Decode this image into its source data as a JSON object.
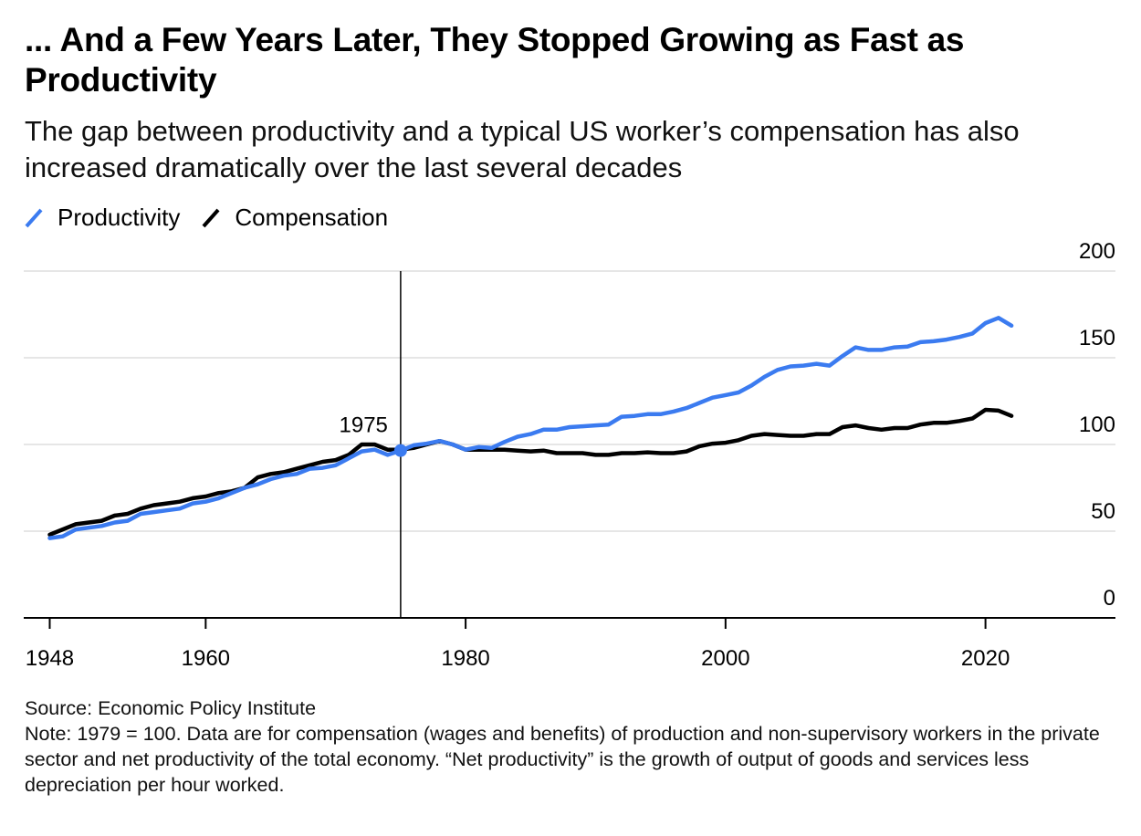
{
  "title": "... And a Few Years Later, They Stopped Growing as Fast as Productivity",
  "subtitle": "The gap between productivity and a typical US worker’s compensation has also increased dramatically over the last several decades",
  "legend": [
    {
      "label": "Productivity",
      "color": "#3b7bf0"
    },
    {
      "label": "Compensation",
      "color": "#000000"
    }
  ],
  "source": "Source: Economic Policy Institute",
  "note": "Note: 1979 = 100. Data are for compensation (wages and benefits) of production and non-supervisory workers in the private sector and net productivity of the total economy. “Net productivity” is the growth of output of goods and services less depreciation per hour worked.",
  "chart_data": {
    "type": "line",
    "xlim": [
      1946,
      2030
    ],
    "ylim": [
      0,
      200
    ],
    "x_ticks": [
      1948,
      1960,
      1980,
      2000,
      2020
    ],
    "x_tick_labels": [
      "1948",
      "1960",
      "1980",
      "2000",
      "2020"
    ],
    "y_ticks": [
      0,
      50,
      100,
      150,
      200
    ],
    "y_tick_labels": [
      "0",
      "50",
      "100",
      "150",
      "200"
    ],
    "y_axis_position": "right",
    "grid": true,
    "annotation": {
      "x": 1975,
      "label": "1975",
      "y": 96.5
    },
    "series": [
      {
        "name": "Productivity",
        "color": "#3b7bf0",
        "x": [
          1948,
          1949,
          1950,
          1951,
          1952,
          1953,
          1954,
          1955,
          1956,
          1957,
          1958,
          1959,
          1960,
          1961,
          1962,
          1963,
          1964,
          1965,
          1966,
          1967,
          1968,
          1969,
          1970,
          1971,
          1972,
          1973,
          1974,
          1975,
          1976,
          1977,
          1978,
          1979,
          1980,
          1981,
          1982,
          1983,
          1984,
          1985,
          1986,
          1987,
          1988,
          1989,
          1990,
          1991,
          1992,
          1993,
          1994,
          1995,
          1996,
          1997,
          1998,
          1999,
          2000,
          2001,
          2002,
          2003,
          2004,
          2005,
          2006,
          2007,
          2008,
          2009,
          2010,
          2011,
          2012,
          2013,
          2014,
          2015,
          2016,
          2017,
          2018,
          2019,
          2020,
          2021,
          2022
        ],
        "values": [
          46,
          47,
          51,
          52,
          53,
          55,
          56,
          60,
          61,
          62,
          63,
          66,
          67,
          69,
          72,
          75,
          77,
          80,
          82,
          83,
          86,
          86.5,
          88,
          92,
          96,
          97,
          94,
          96.5,
          99.5,
          100.5,
          102,
          100,
          97,
          98.5,
          98,
          101.5,
          104.5,
          106,
          108.5,
          108.5,
          110,
          110.5,
          111,
          111.5,
          116,
          116.5,
          117.5,
          117.5,
          119,
          121,
          124,
          127,
          128.5,
          130,
          134,
          139,
          143,
          145,
          145.5,
          146.5,
          145.5,
          151,
          156,
          154.5,
          154.5,
          156,
          156.5,
          159,
          159.5,
          160.5,
          162,
          164,
          170,
          173,
          168.5
        ]
      },
      {
        "name": "Compensation",
        "color": "#000000",
        "x": [
          1948,
          1949,
          1950,
          1951,
          1952,
          1953,
          1954,
          1955,
          1956,
          1957,
          1958,
          1959,
          1960,
          1961,
          1962,
          1963,
          1964,
          1965,
          1966,
          1967,
          1968,
          1969,
          1970,
          1971,
          1972,
          1973,
          1974,
          1975,
          1976,
          1977,
          1978,
          1979,
          1980,
          1981,
          1982,
          1983,
          1984,
          1985,
          1986,
          1987,
          1988,
          1989,
          1990,
          1991,
          1992,
          1993,
          1994,
          1995,
          1996,
          1997,
          1998,
          1999,
          2000,
          2001,
          2002,
          2003,
          2004,
          2005,
          2006,
          2007,
          2008,
          2009,
          2010,
          2011,
          2012,
          2013,
          2014,
          2015,
          2016,
          2017,
          2018,
          2019,
          2020,
          2021,
          2022
        ],
        "values": [
          48,
          51,
          54,
          55,
          56,
          59,
          60,
          63,
          65,
          66,
          67,
          69,
          70,
          72,
          73,
          75,
          81,
          83,
          84,
          86,
          88,
          90,
          91,
          94,
          100,
          100,
          97,
          97,
          98,
          100,
          102,
          100,
          97,
          97,
          97,
          97,
          96.5,
          96,
          96.5,
          95,
          95,
          95,
          94,
          94,
          95,
          95,
          95.5,
          95,
          95,
          96,
          99,
          100.5,
          101,
          102.5,
          105,
          106,
          105.5,
          105,
          105,
          106,
          106,
          110,
          111,
          109.5,
          108.5,
          109.5,
          109.5,
          111.5,
          112.5,
          112.5,
          113.5,
          115,
          120,
          119.5,
          116.5
        ]
      }
    ]
  }
}
